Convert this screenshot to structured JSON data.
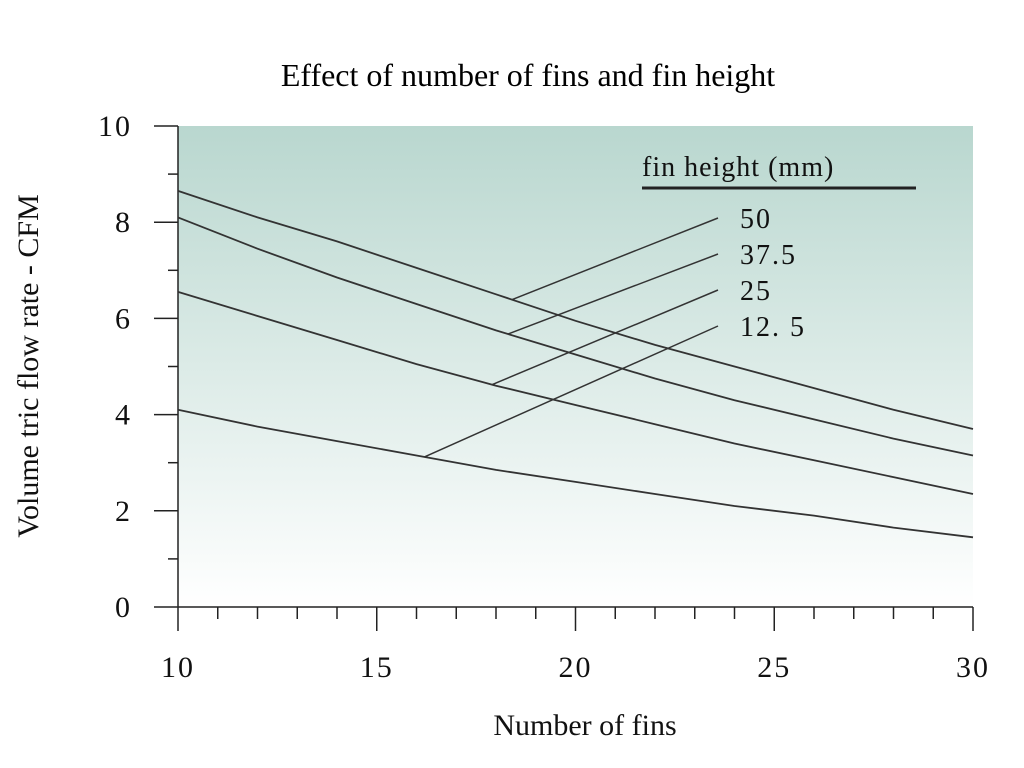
{
  "chart_data": {
    "type": "line",
    "title": "Effect of number of fins and fin height",
    "xlabel": "Number of fins",
    "ylabel": "Volume tric flow rate - CFM",
    "xlim": [
      10,
      30
    ],
    "ylim": [
      0,
      10
    ],
    "x_ticks": [
      10,
      15,
      20,
      25,
      30
    ],
    "x_tick_labels": [
      "10",
      "15",
      "20",
      "25",
      "30"
    ],
    "y_ticks": [
      0,
      2,
      4,
      6,
      8,
      10
    ],
    "y_tick_labels": [
      "0",
      "2",
      "4",
      "6",
      "8",
      "10"
    ],
    "grid": false,
    "legend": {
      "title": "fin height (mm)",
      "placement": "top-right"
    },
    "x": [
      10,
      12,
      14,
      16,
      18,
      20,
      22,
      24,
      26,
      28,
      30
    ],
    "series": [
      {
        "name": "50",
        "label": "50",
        "leader_x": 18.4,
        "values": [
          8.65,
          8.1,
          7.6,
          7.05,
          6.5,
          5.95,
          5.45,
          5.0,
          4.55,
          4.1,
          3.7
        ]
      },
      {
        "name": "37.5",
        "label": "37.5",
        "leader_x": 18.3,
        "values": [
          8.1,
          7.45,
          6.85,
          6.3,
          5.75,
          5.25,
          4.75,
          4.3,
          3.9,
          3.5,
          3.15
        ]
      },
      {
        "name": "25",
        "label": "25",
        "leader_x": 17.9,
        "values": [
          6.55,
          6.05,
          5.55,
          5.05,
          4.6,
          4.2,
          3.8,
          3.4,
          3.05,
          2.7,
          2.35
        ]
      },
      {
        "name": "12.5",
        "label": "12. 5",
        "leader_x": 16.2,
        "values": [
          4.1,
          3.75,
          3.45,
          3.15,
          2.85,
          2.6,
          2.35,
          2.1,
          1.9,
          1.65,
          1.45
        ]
      }
    ],
    "colors": {
      "background_top": "#b9d7cf",
      "background_bottom": "#ffffff",
      "line": "#333333"
    }
  }
}
